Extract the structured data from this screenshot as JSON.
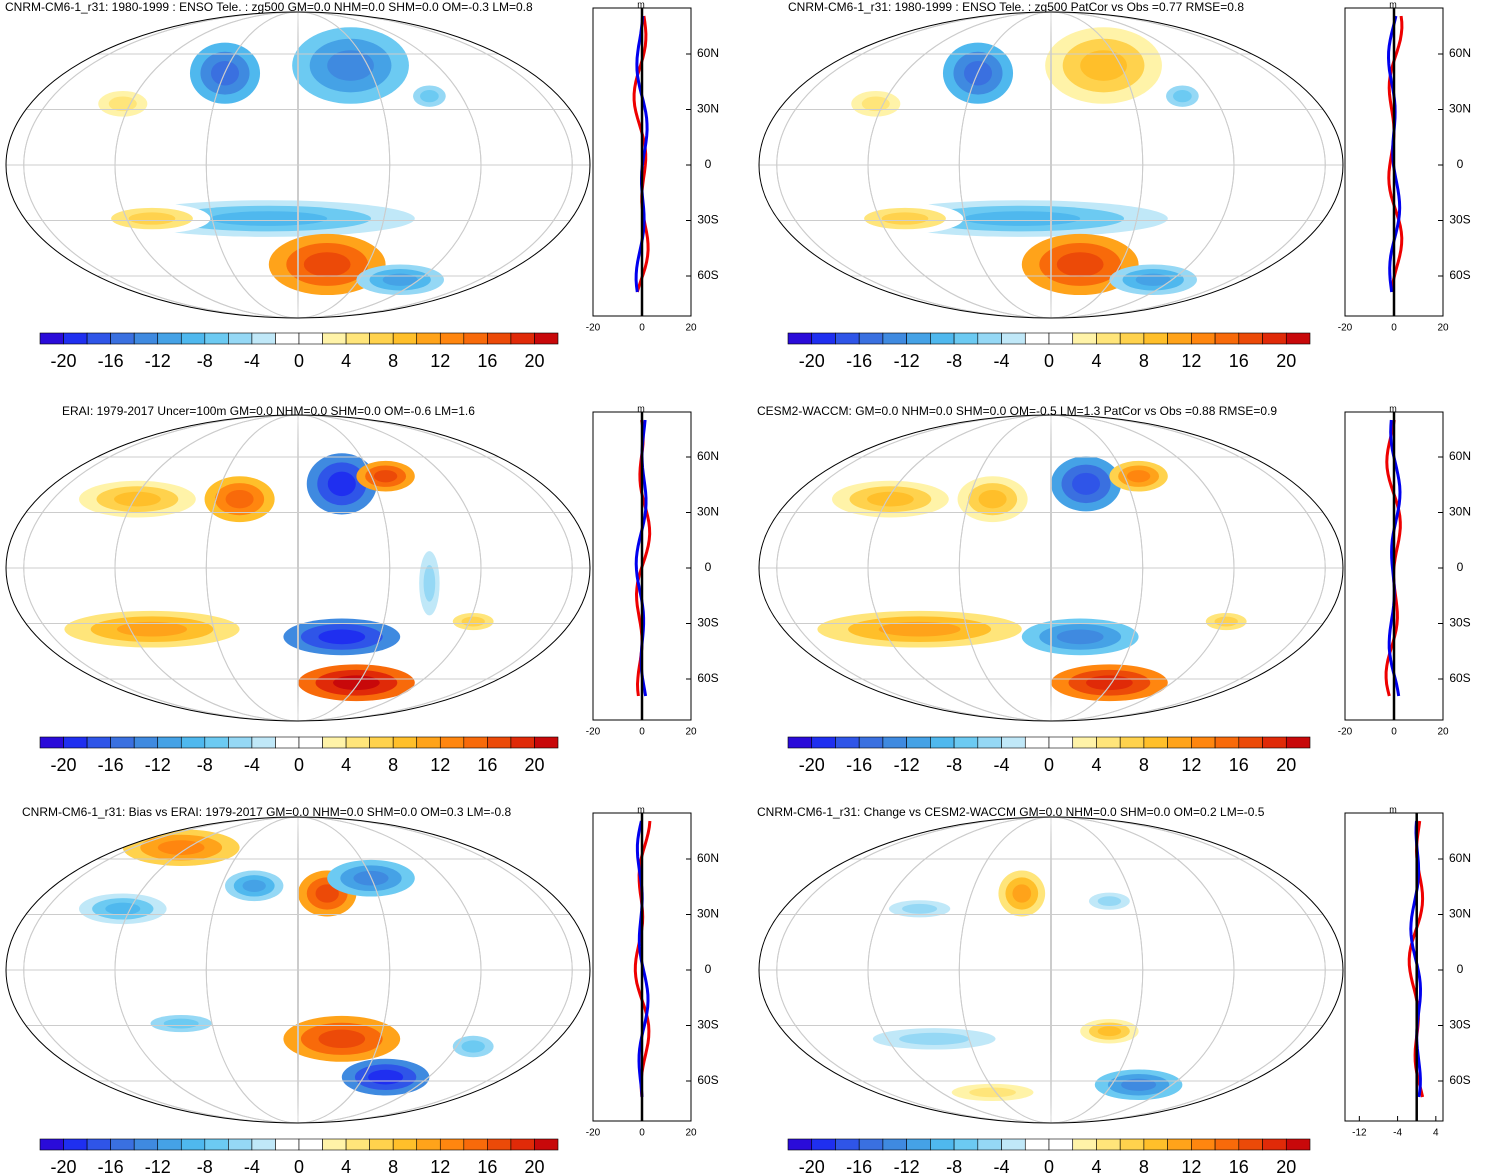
{
  "colorbar_colors": [
    "#2a0bd9",
    "#1f2ff0",
    "#2f55e8",
    "#3a70e0",
    "#3f8ae0",
    "#45a2e6",
    "#4fb8ee",
    "#6ccaf2",
    "#95d8f5",
    "#c0e8f8",
    "#ffffff",
    "#ffffff",
    "#fff3a8",
    "#ffe57a",
    "#ffd24d",
    "#ffbf2a",
    "#ffa31a",
    "#ff860f",
    "#f86a0a",
    "#ec4a08",
    "#e02a08",
    "#c8080a"
  ],
  "panels": [
    {
      "title": "CNRM-CM6-1_r31: 1980-1999 : ENSO Tele. : zg500 GM=0.0 NHM=0.0 SHM=0.0 OM=-0.3 LM=0.8",
      "colorbar": {
        "lim": [
          -22,
          22
        ],
        "ticks": [
          -20,
          -16,
          -12,
          -8,
          -4,
          0,
          4,
          8,
          12,
          16,
          20
        ]
      },
      "profile": {
        "unit": "m",
        "xlim": [
          -20,
          20
        ],
        "xticks": [
          -20,
          0,
          20
        ],
        "lat_labels": [
          "60N",
          "30N",
          "0",
          "30S",
          "60S"
        ]
      }
    },
    {
      "title": "CNRM-CM6-1_r31: 1980-1999 : ENSO Tele. : zg500 PatCor vs Obs =0.77 RMSE=0.8",
      "colorbar": {
        "lim": [
          -22,
          22
        ],
        "ticks": [
          -20,
          -16,
          -12,
          -8,
          -4,
          0,
          4,
          8,
          12,
          16,
          20
        ]
      },
      "profile": {
        "unit": "m",
        "xlim": [
          -20,
          20
        ],
        "xticks": [
          -20,
          0,
          20
        ],
        "lat_labels": [
          "60N",
          "30N",
          "0",
          "30S",
          "60S"
        ]
      }
    },
    {
      "title": "ERAI: 1979-2017 Uncer=100m GM=0.0 NHM=0.0 SHM=0.0 OM=-0.6 LM=1.6",
      "colorbar": {
        "lim": [
          -22,
          22
        ],
        "ticks": [
          -20,
          -16,
          -12,
          -8,
          -4,
          0,
          4,
          8,
          12,
          16,
          20
        ]
      },
      "profile": {
        "unit": "m",
        "xlim": [
          -20,
          20
        ],
        "xticks": [
          -20,
          0,
          20
        ],
        "lat_labels": [
          "60N",
          "30N",
          "0",
          "30S",
          "60S"
        ]
      }
    },
    {
      "title": "CESM2-WACCM: GM=0.0 NHM=0.0 SHM=0.0 OM=-0.5 LM=1.3 PatCor vs Obs =0.88 RMSE=0.9",
      "colorbar": {
        "lim": [
          -22,
          22
        ],
        "ticks": [
          -20,
          -16,
          -12,
          -8,
          -4,
          0,
          4,
          8,
          12,
          16,
          20
        ]
      },
      "profile": {
        "unit": "m",
        "xlim": [
          -20,
          20
        ],
        "xticks": [
          -20,
          0,
          20
        ],
        "lat_labels": [
          "60N",
          "30N",
          "0",
          "30S",
          "60S"
        ]
      }
    },
    {
      "title": "CNRM-CM6-1_r31: Bias vs ERAI: 1979-2017 GM=0.0 NHM=0.0 SHM=0.0 OM=0.3 LM=-0.8",
      "colorbar": {
        "lim": [
          -22,
          22
        ],
        "ticks": [
          -20,
          -16,
          -12,
          -8,
          -4,
          0,
          4,
          8,
          12,
          16,
          20
        ]
      },
      "profile": {
        "unit": "m",
        "xlim": [
          -20,
          20
        ],
        "xticks": [
          -20,
          0,
          20
        ],
        "lat_labels": [
          "60N",
          "30N",
          "0",
          "30S",
          "60S"
        ]
      }
    },
    {
      "title": "CNRM-CM6-1_r31: Change vs CESM2-WACCM GM=0.0 NHM=0.0 SHM=0.0 OM=0.2 LM=-0.5",
      "colorbar": {
        "lim": [
          -22,
          22
        ],
        "ticks": [
          -20,
          -16,
          -12,
          -8,
          -4,
          0,
          4,
          8,
          12,
          16,
          20
        ]
      },
      "profile": {
        "unit": "m",
        "xlim": [
          -15,
          5.5
        ],
        "xticks": [
          -12,
          -4,
          4
        ],
        "lat_labels": [
          "60N",
          "30N",
          "0",
          "30S",
          "60S"
        ]
      }
    }
  ]
}
